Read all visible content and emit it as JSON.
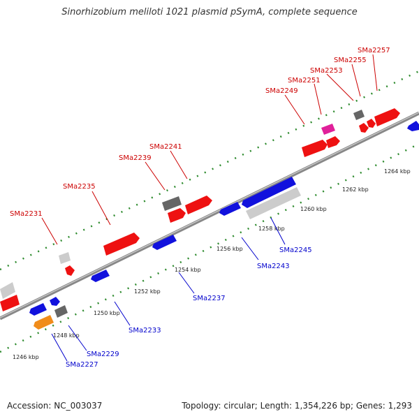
{
  "title": "Sinorhizobium meliloti 1021 plasmid pSymA, complete sequence",
  "footer": {
    "accession": "Accession: NC_003037",
    "summary": "Topology: circular; Length: 1,354,226 bp; Genes: 1,293"
  },
  "colors": {
    "forward_label": "#cc0000",
    "reverse_label": "#0000cc",
    "backbone": "#888888",
    "tick_dots": "#2e8b2e"
  },
  "ticks": [
    {
      "label": "1246 kbp",
      "bp": 1246000
    },
    {
      "label": "1248 kbp",
      "bp": 1248000
    },
    {
      "label": "1250 kbp",
      "bp": 1250000
    },
    {
      "label": "1252 kbp",
      "bp": 1252000
    },
    {
      "label": "1254 kbp",
      "bp": 1254000
    },
    {
      "label": "1256 kbp",
      "bp": 1256000
    },
    {
      "label": "1258 kbp",
      "bp": 1258000
    },
    {
      "label": "1260 kbp",
      "bp": 1260000
    },
    {
      "label": "1262 kbp",
      "bp": 1262000
    },
    {
      "label": "1264 kbp",
      "bp": 1264000
    }
  ],
  "forward_labels": [
    "SMa2231",
    "SMa2235",
    "SMa2239",
    "SMa2241",
    "SMa2249",
    "SMa2251",
    "SMa2253",
    "SMa2255",
    "SMa2257"
  ],
  "reverse_labels": [
    "SMa2227",
    "SMa2229",
    "SMa2233",
    "SMa2237",
    "SMa2243",
    "SMa2245"
  ],
  "feature_colors": {
    "red": "#ee1111",
    "blue": "#1111dd",
    "light_gray": "#cccccc",
    "dark_gray": "#666666",
    "orange": "#f08c1a",
    "magenta": "#e0209a"
  }
}
